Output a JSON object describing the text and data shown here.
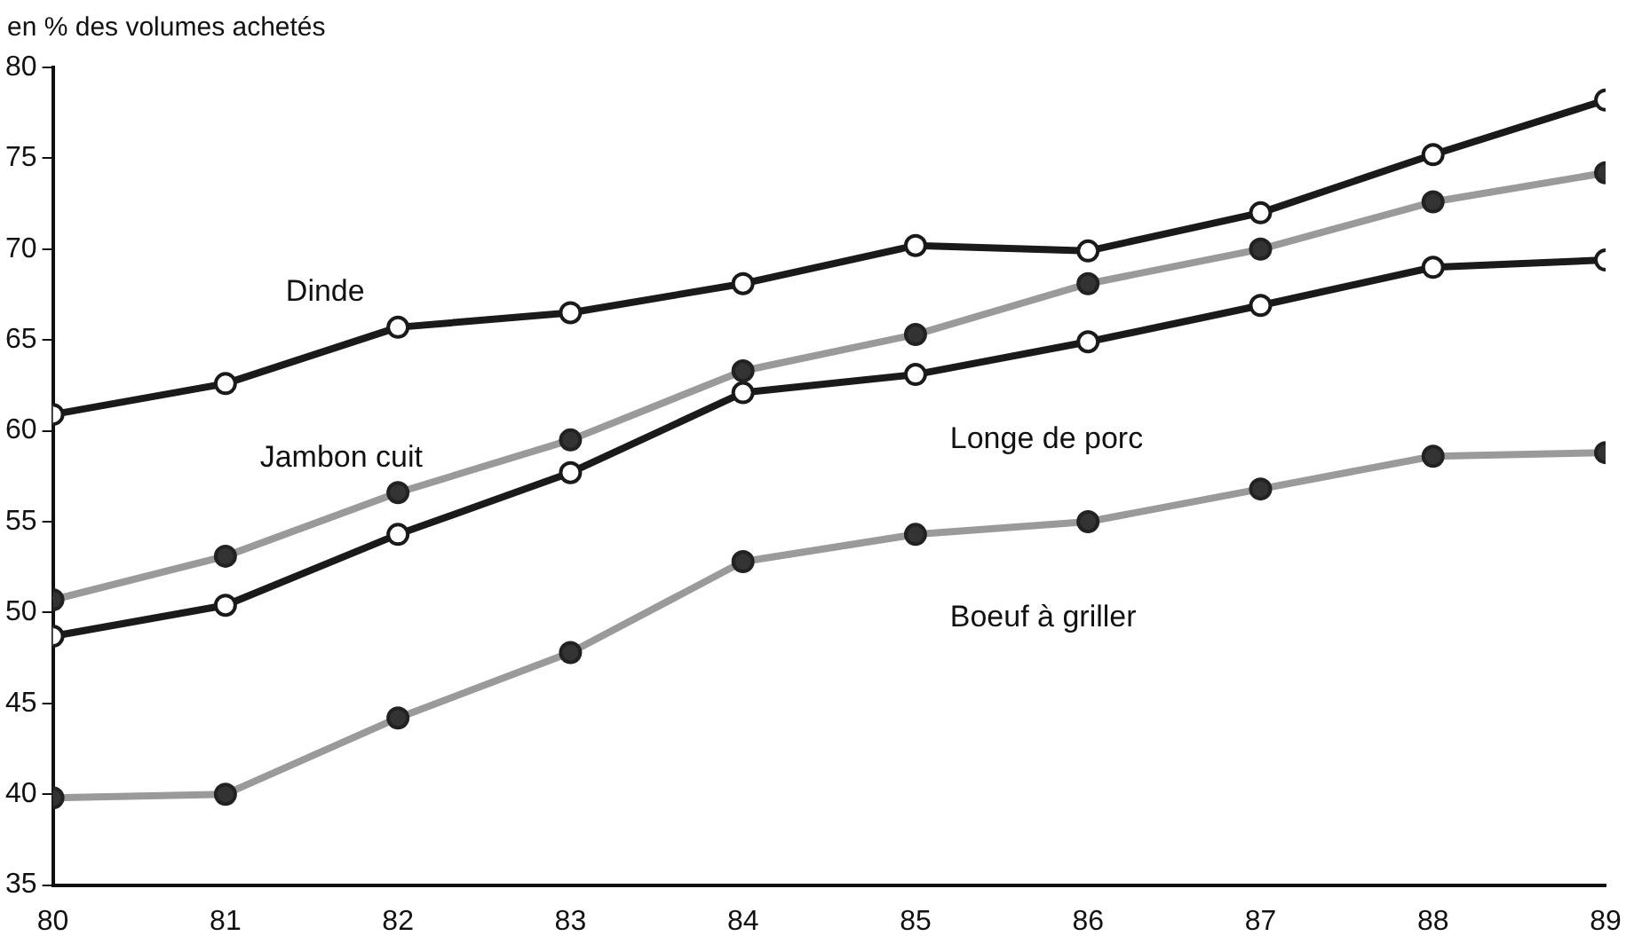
{
  "chart_data": {
    "type": "line",
    "ylabel": "en % des volumes achetés",
    "x": [
      80,
      81,
      82,
      83,
      84,
      85,
      86,
      87,
      88,
      89
    ],
    "series": [
      {
        "name": "Dinde",
        "color": "#1a1a1a",
        "values": [
          60.9,
          62.6,
          65.7,
          66.5,
          68.1,
          70.2,
          69.9,
          72.0,
          75.2,
          78.2
        ]
      },
      {
        "name": "Jambon cuit",
        "color": "#9a9a9a",
        "values": [
          50.7,
          53.1,
          56.6,
          59.5,
          63.3,
          65.3,
          68.1,
          70.0,
          72.6,
          74.2
        ]
      },
      {
        "name": "Longe de porc",
        "color": "#1a1a1a",
        "values": [
          48.7,
          50.4,
          54.3,
          57.7,
          62.1,
          63.1,
          64.9,
          66.9,
          69.0,
          69.4
        ]
      },
      {
        "name": "Boeuf à griller",
        "color": "#9a9a9a",
        "values": [
          39.8,
          40.0,
          44.2,
          47.8,
          52.8,
          54.3,
          55.0,
          56.8,
          58.6,
          58.8
        ]
      }
    ],
    "xlim": [
      80,
      89
    ],
    "xticks": [
      80,
      81,
      82,
      83,
      84,
      85,
      86,
      87,
      88,
      89
    ],
    "ylim": [
      35,
      80
    ],
    "yticks": [
      35,
      40,
      45,
      50,
      55,
      60,
      65,
      70,
      75,
      80
    ],
    "grid": false,
    "legend": false,
    "marker": "circle",
    "line_style": "solid"
  }
}
